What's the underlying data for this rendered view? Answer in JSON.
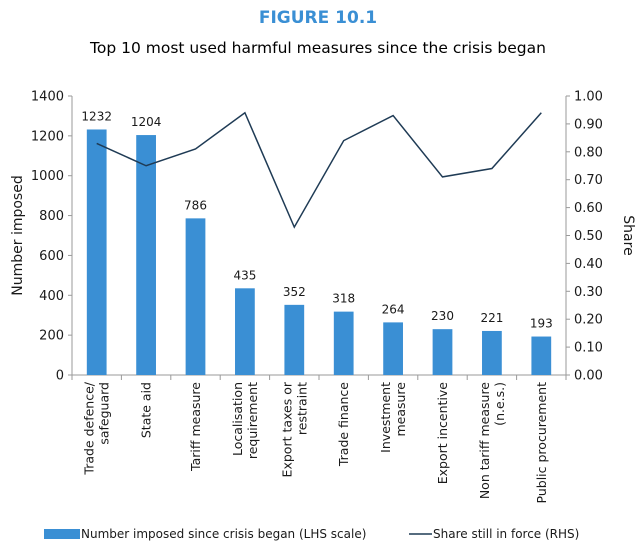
{
  "figure_label": "FIGURE 10.1",
  "colors": {
    "bar": "#3a8fd4",
    "line": "#1f3b55",
    "figure_label": "#3a8fd4",
    "axis": "#9a9a9a"
  },
  "chart_data": {
    "type": "bar",
    "title": "Top 10 most used harmful measures since the crisis began",
    "categories": [
      [
        "Trade defence/",
        "safeguard"
      ],
      [
        "State aid"
      ],
      [
        "Tariff measure"
      ],
      [
        "Localisation",
        "requirement"
      ],
      [
        "Export taxes or",
        "restraint"
      ],
      [
        "Trade finance"
      ],
      [
        "Investment",
        "measure"
      ],
      [
        "Export incentive"
      ],
      [
        "Non tariff measure",
        "(n.e.s.)"
      ],
      [
        "Public procurement"
      ]
    ],
    "ylabel": "Number imposed",
    "y2label": "Share",
    "ylim": [
      0,
      1400
    ],
    "y2lim": [
      0,
      1
    ],
    "yticks": [
      "0",
      "200",
      "400",
      "600",
      "800",
      "1000",
      "1200",
      "1400"
    ],
    "y2ticks": [
      "0.00",
      "0.10",
      "0.20",
      "0.30",
      "0.40",
      "0.50",
      "0.60",
      "0.70",
      "0.80",
      "0.90",
      "1.00"
    ],
    "series": [
      {
        "name": "Number imposed since crisis began (LHS scale)",
        "kind": "bar",
        "axis": "left",
        "values": [
          1232,
          1204,
          786,
          435,
          352,
          318,
          264,
          230,
          221,
          193
        ],
        "labels": [
          "1232",
          "1204",
          "786",
          "435",
          "352",
          "318",
          "264",
          "230",
          "221",
          "193"
        ]
      },
      {
        "name": "Share still in force (RHS)",
        "kind": "line",
        "axis": "right",
        "values": [
          0.83,
          0.75,
          0.81,
          0.94,
          0.53,
          0.84,
          0.93,
          0.71,
          0.74,
          0.94
        ]
      }
    ],
    "legend_position": "bottom",
    "grid": false
  }
}
